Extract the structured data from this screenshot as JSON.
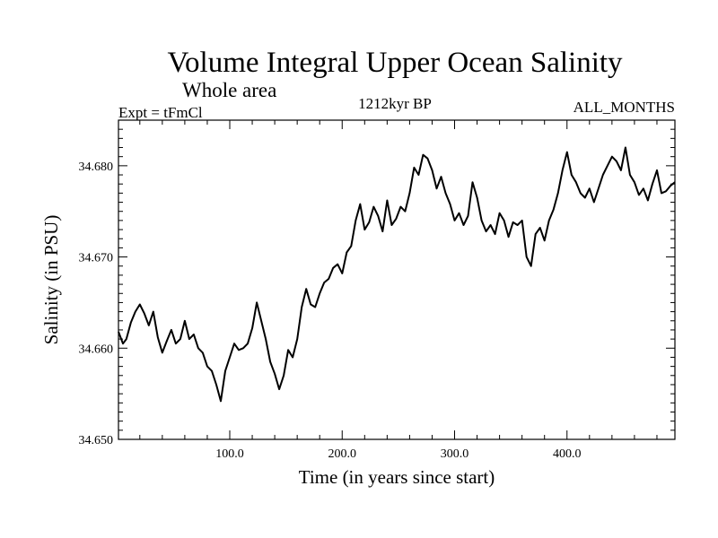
{
  "chart_data": {
    "type": "line",
    "title": "Volume Integral Upper Ocean Salinity",
    "subtitle": "Whole area",
    "experiment": "Expt = tFmCl",
    "period": "1212kyr BP",
    "season": "ALL_MONTHS",
    "xlabel": "Time (in years since start)",
    "ylabel": "Salinity (in PSU)",
    "xlim": [
      1,
      496
    ],
    "ylim": [
      34.65,
      34.685
    ],
    "x_ticks": [
      100,
      200,
      300,
      400
    ],
    "x_tick_labels": [
      "100.0",
      "200.0",
      "300.0",
      "400.0"
    ],
    "y_ticks": [
      34.65,
      34.66,
      34.67,
      34.68
    ],
    "y_tick_labels": [
      "34.650",
      "34.660",
      "34.670",
      "34.680"
    ],
    "grid": false,
    "series": [
      {
        "name": "Salinity",
        "x": [
          1,
          5,
          8,
          12,
          16,
          20,
          24,
          28,
          32,
          36,
          40,
          44,
          48,
          52,
          56,
          60,
          64,
          68,
          72,
          76,
          80,
          84,
          88,
          92,
          96,
          100,
          104,
          108,
          112,
          116,
          120,
          124,
          128,
          132,
          136,
          140,
          144,
          148,
          152,
          156,
          160,
          164,
          168,
          172,
          176,
          180,
          184,
          188,
          192,
          196,
          200,
          204,
          208,
          212,
          216,
          220,
          224,
          228,
          232,
          236,
          240,
          244,
          248,
          252,
          256,
          260,
          264,
          268,
          272,
          276,
          280,
          284,
          288,
          292,
          296,
          300,
          304,
          308,
          312,
          316,
          320,
          324,
          328,
          332,
          336,
          340,
          344,
          348,
          352,
          356,
          360,
          364,
          368,
          372,
          376,
          380,
          384,
          388,
          392,
          396,
          400,
          404,
          408,
          412,
          416,
          420,
          424,
          428,
          432,
          436,
          440,
          444,
          448,
          452,
          456,
          460,
          464,
          468,
          472,
          476,
          480,
          484,
          488,
          492,
          496
        ],
        "values": [
          34.6618,
          34.6605,
          34.661,
          34.6628,
          34.664,
          34.6648,
          34.6638,
          34.6625,
          34.664,
          34.6612,
          34.6595,
          34.6608,
          34.662,
          34.6605,
          34.661,
          34.663,
          34.661,
          34.6615,
          34.66,
          34.6595,
          34.658,
          34.6575,
          34.656,
          34.6542,
          34.6575,
          34.659,
          34.6605,
          34.6598,
          34.66,
          34.6605,
          34.6622,
          34.665,
          34.663,
          34.661,
          34.6585,
          34.6572,
          34.6555,
          34.657,
          34.6598,
          34.659,
          34.661,
          34.6645,
          34.6665,
          34.6648,
          34.6645,
          34.666,
          34.6672,
          34.6676,
          34.6688,
          34.6692,
          34.6682,
          34.6705,
          34.6712,
          34.674,
          34.6758,
          34.673,
          34.6738,
          34.6755,
          34.6745,
          34.6728,
          34.6762,
          34.6735,
          34.6742,
          34.6755,
          34.675,
          34.677,
          34.6798,
          34.679,
          34.6812,
          34.6808,
          34.6795,
          34.6775,
          34.6788,
          34.677,
          34.6758,
          34.674,
          34.6748,
          34.6735,
          34.6745,
          34.6782,
          34.6765,
          34.674,
          34.6728,
          34.6735,
          34.6725,
          34.6748,
          34.674,
          34.6722,
          34.6738,
          34.6735,
          34.674,
          34.67,
          34.669,
          34.6725,
          34.6732,
          34.6718,
          34.674,
          34.6752,
          34.677,
          34.6795,
          34.6815,
          34.679,
          34.6782,
          34.677,
          34.6765,
          34.6775,
          34.676,
          34.6775,
          34.679,
          34.68,
          34.681,
          34.6805,
          34.6795,
          34.682,
          34.679,
          34.6782,
          34.6768,
          34.6775,
          34.6762,
          34.678,
          34.6795,
          34.677,
          34.6772,
          34.6778,
          34.6782
        ]
      }
    ]
  }
}
